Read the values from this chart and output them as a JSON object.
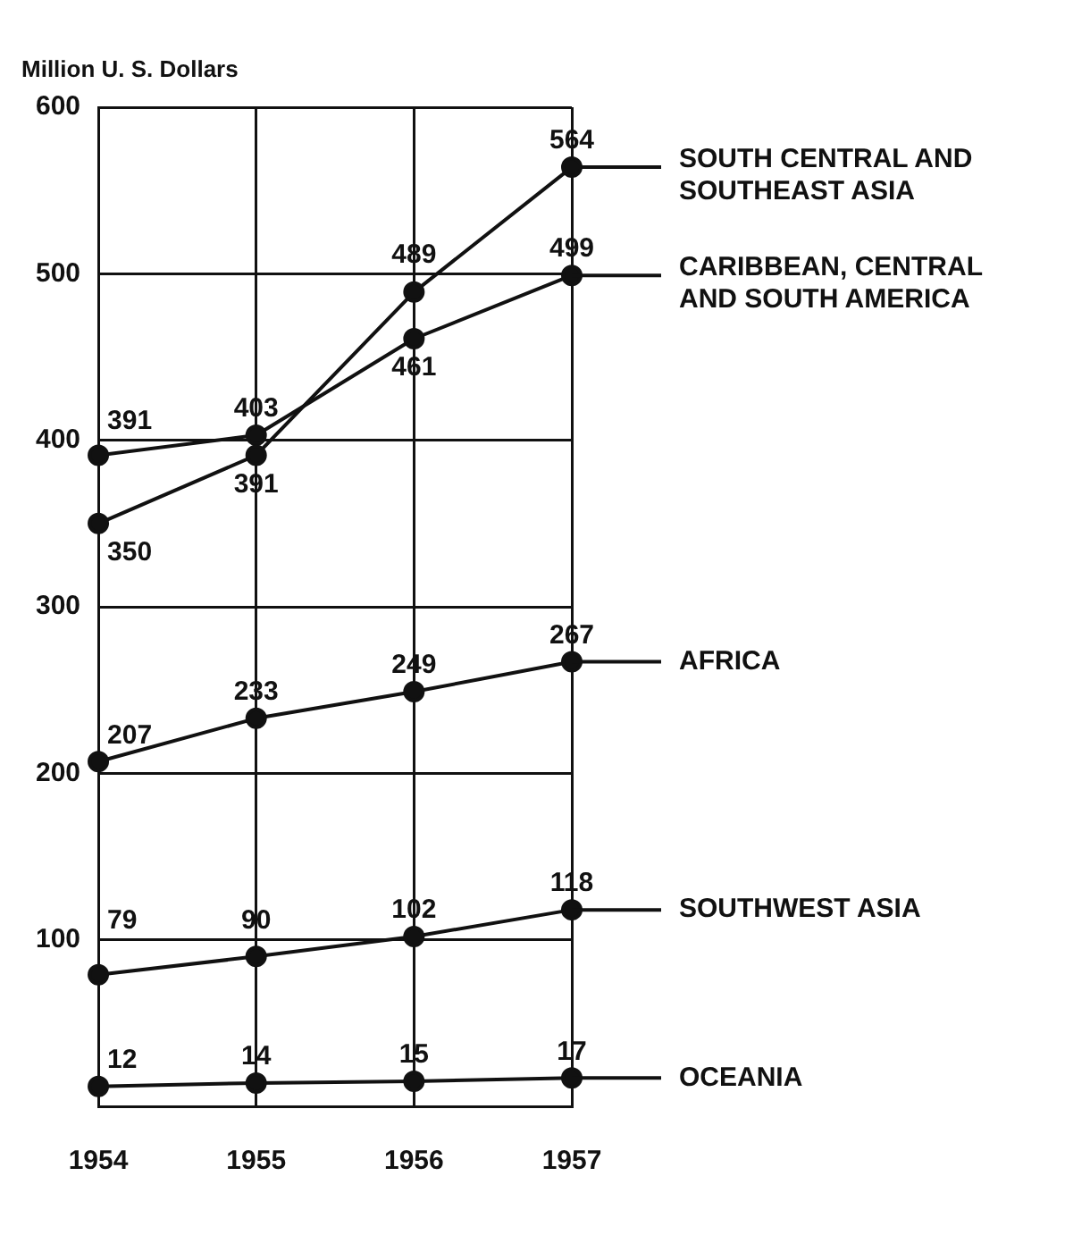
{
  "chart_data": {
    "type": "line",
    "ylabel": "Million U. S. Dollars",
    "categories": [
      "1954",
      "1955",
      "1956",
      "1957"
    ],
    "series": [
      {
        "name": "SOUTH CENTRAL AND SOUTHEAST ASIA",
        "color": "#111111",
        "values": [
          350,
          391,
          489,
          564
        ]
      },
      {
        "name": "CARIBBEAN, CENTRAL AND SOUTH AMERICA",
        "color": "#111111",
        "values": [
          391,
          403,
          461,
          499
        ]
      },
      {
        "name": "AFRICA",
        "color": "#111111",
        "values": [
          207,
          233,
          249,
          267
        ]
      },
      {
        "name": "SOUTHWEST ASIA",
        "color": "#111111",
        "values": [
          79,
          90,
          102,
          118
        ]
      },
      {
        "name": "OCEANIA",
        "color": "#111111",
        "values": [
          12,
          14,
          15,
          17
        ]
      }
    ],
    "ylim": [
      0,
      600
    ],
    "yticks": [
      100,
      200,
      300,
      400,
      500,
      600
    ],
    "grid": true,
    "legend": "right",
    "marker": "circle",
    "line_style": "solid",
    "data_labels": true
  }
}
